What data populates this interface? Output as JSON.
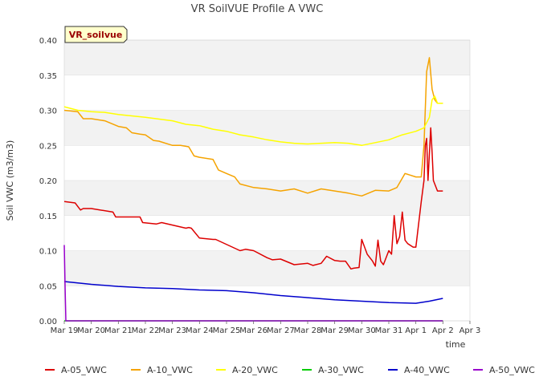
{
  "chart_data": {
    "type": "line",
    "title": "VR SoilVUE Profile A VWC",
    "xlabel": "time",
    "ylabel": "Soil VWC (m3/m3)",
    "badge": "VR_soilvue",
    "xlim": [
      0,
      15
    ],
    "ylim": [
      0,
      0.4
    ],
    "grid": true,
    "legend_position": "bottom",
    "x_ticks": [
      {
        "value": 0,
        "label": "Mar 19"
      },
      {
        "value": 1,
        "label": "Mar 20"
      },
      {
        "value": 2,
        "label": "Mar 21"
      },
      {
        "value": 3,
        "label": "Mar 22"
      },
      {
        "value": 4,
        "label": "Mar 23"
      },
      {
        "value": 5,
        "label": "Mar 24"
      },
      {
        "value": 6,
        "label": "Mar 25"
      },
      {
        "value": 7,
        "label": "Mar 26"
      },
      {
        "value": 8,
        "label": "Mar 27"
      },
      {
        "value": 9,
        "label": "Mar 28"
      },
      {
        "value": 10,
        "label": "Mar 29"
      },
      {
        "value": 11,
        "label": "Mar 30"
      },
      {
        "value": 12,
        "label": "Mar 31"
      },
      {
        "value": 13,
        "label": "Apr 1"
      },
      {
        "value": 14,
        "label": "Apr 2"
      },
      {
        "value": 15,
        "label": "Apr 3"
      }
    ],
    "y_ticks": [
      {
        "value": 0.0,
        "label": "0.00"
      },
      {
        "value": 0.05,
        "label": "0.05"
      },
      {
        "value": 0.1,
        "label": "0.10"
      },
      {
        "value": 0.15,
        "label": "0.15"
      },
      {
        "value": 0.2,
        "label": "0.20"
      },
      {
        "value": 0.25,
        "label": "0.25"
      },
      {
        "value": 0.3,
        "label": "0.30"
      },
      {
        "value": 0.35,
        "label": "0.35"
      },
      {
        "value": 0.4,
        "label": "0.40"
      }
    ],
    "series": [
      {
        "name": "A-05_VWC",
        "color": "#dd0000",
        "x": [
          0,
          0.4,
          0.6,
          0.7,
          1.0,
          1.8,
          1.9,
          2.0,
          2.8,
          2.9,
          3.4,
          3.6,
          4.5,
          4.6,
          4.7,
          5.0,
          5.5,
          5.6,
          6.5,
          6.7,
          7.0,
          7.5,
          7.7,
          8.0,
          8.5,
          9.0,
          9.2,
          9.5,
          9.7,
          10.0,
          10.2,
          10.4,
          10.6,
          10.7,
          10.9,
          11.0,
          11.2,
          11.4,
          11.5,
          11.6,
          11.7,
          11.8,
          12.0,
          12.1,
          12.2,
          12.3,
          12.4,
          12.5,
          12.6,
          12.7,
          12.9,
          13.0,
          13.2,
          13.3,
          13.35,
          13.4,
          13.45,
          13.55,
          13.6,
          13.65,
          13.8,
          14.0
        ],
        "y": [
          0.17,
          0.168,
          0.158,
          0.16,
          0.16,
          0.155,
          0.148,
          0.148,
          0.148,
          0.14,
          0.138,
          0.14,
          0.132,
          0.133,
          0.132,
          0.118,
          0.116,
          0.116,
          0.1,
          0.102,
          0.1,
          0.09,
          0.087,
          0.088,
          0.08,
          0.082,
          0.079,
          0.082,
          0.092,
          0.086,
          0.085,
          0.085,
          0.074,
          0.075,
          0.076,
          0.116,
          0.095,
          0.085,
          0.078,
          0.115,
          0.085,
          0.08,
          0.1,
          0.095,
          0.15,
          0.11,
          0.12,
          0.155,
          0.115,
          0.11,
          0.105,
          0.105,
          0.17,
          0.2,
          0.25,
          0.26,
          0.2,
          0.275,
          0.24,
          0.2,
          0.185,
          0.185
        ]
      },
      {
        "name": "A-10_VWC",
        "color": "#f5a300",
        "x": [
          0,
          0.5,
          0.7,
          1.0,
          1.5,
          2.0,
          2.3,
          2.5,
          2.8,
          3.0,
          3.3,
          3.5,
          4.0,
          4.3,
          4.6,
          4.8,
          5.0,
          5.5,
          5.7,
          6.0,
          6.3,
          6.5,
          7.0,
          7.5,
          8.0,
          8.5,
          9.0,
          9.5,
          10.0,
          10.5,
          11.0,
          11.5,
          12.0,
          12.3,
          12.6,
          13.0,
          13.2,
          13.3,
          13.4,
          13.5,
          13.6,
          13.7,
          13.8,
          14.0
        ],
        "y": [
          0.3,
          0.298,
          0.288,
          0.288,
          0.285,
          0.277,
          0.275,
          0.268,
          0.266,
          0.265,
          0.257,
          0.256,
          0.25,
          0.25,
          0.248,
          0.235,
          0.233,
          0.23,
          0.215,
          0.21,
          0.205,
          0.195,
          0.19,
          0.188,
          0.185,
          0.188,
          0.182,
          0.188,
          0.185,
          0.182,
          0.178,
          0.186,
          0.185,
          0.19,
          0.21,
          0.205,
          0.205,
          0.25,
          0.355,
          0.375,
          0.33,
          0.315,
          0.31,
          0.31
        ]
      },
      {
        "name": "A-20_VWC",
        "color": "#ffff00",
        "x": [
          0,
          0.5,
          1.0,
          1.5,
          2.0,
          3.0,
          4.0,
          4.5,
          5.0,
          5.5,
          6.0,
          6.5,
          7.0,
          7.5,
          8.0,
          8.5,
          9.0,
          9.5,
          10.0,
          10.5,
          11.0,
          11.5,
          12.0,
          12.5,
          13.0,
          13.3,
          13.5,
          13.6,
          13.7,
          13.8,
          14.0
        ],
        "y": [
          0.305,
          0.3,
          0.298,
          0.297,
          0.294,
          0.29,
          0.285,
          0.28,
          0.278,
          0.273,
          0.27,
          0.265,
          0.262,
          0.258,
          0.255,
          0.253,
          0.252,
          0.253,
          0.254,
          0.253,
          0.25,
          0.254,
          0.258,
          0.265,
          0.27,
          0.275,
          0.29,
          0.315,
          0.32,
          0.31,
          0.31
        ]
      },
      {
        "name": "A-30_VWC",
        "color": "#00cc00",
        "x": [
          0,
          14.0
        ],
        "y": [
          0.0,
          0.0
        ]
      },
      {
        "name": "A-40_VWC",
        "color": "#0000cc",
        "x": [
          0,
          0.5,
          1.0,
          2.0,
          3.0,
          4.0,
          5.0,
          6.0,
          7.0,
          8.0,
          9.0,
          10.0,
          11.0,
          12.0,
          13.0,
          13.5,
          14.0
        ],
        "y": [
          0.056,
          0.054,
          0.052,
          0.049,
          0.047,
          0.046,
          0.044,
          0.043,
          0.04,
          0.036,
          0.033,
          0.03,
          0.028,
          0.026,
          0.025,
          0.028,
          0.032
        ]
      },
      {
        "name": "A-50_VWC",
        "color": "#9900cc",
        "x": [
          0,
          0.03,
          0.06,
          14.0
        ],
        "y": [
          0.108,
          0.05,
          0.0,
          0.0
        ]
      }
    ]
  }
}
